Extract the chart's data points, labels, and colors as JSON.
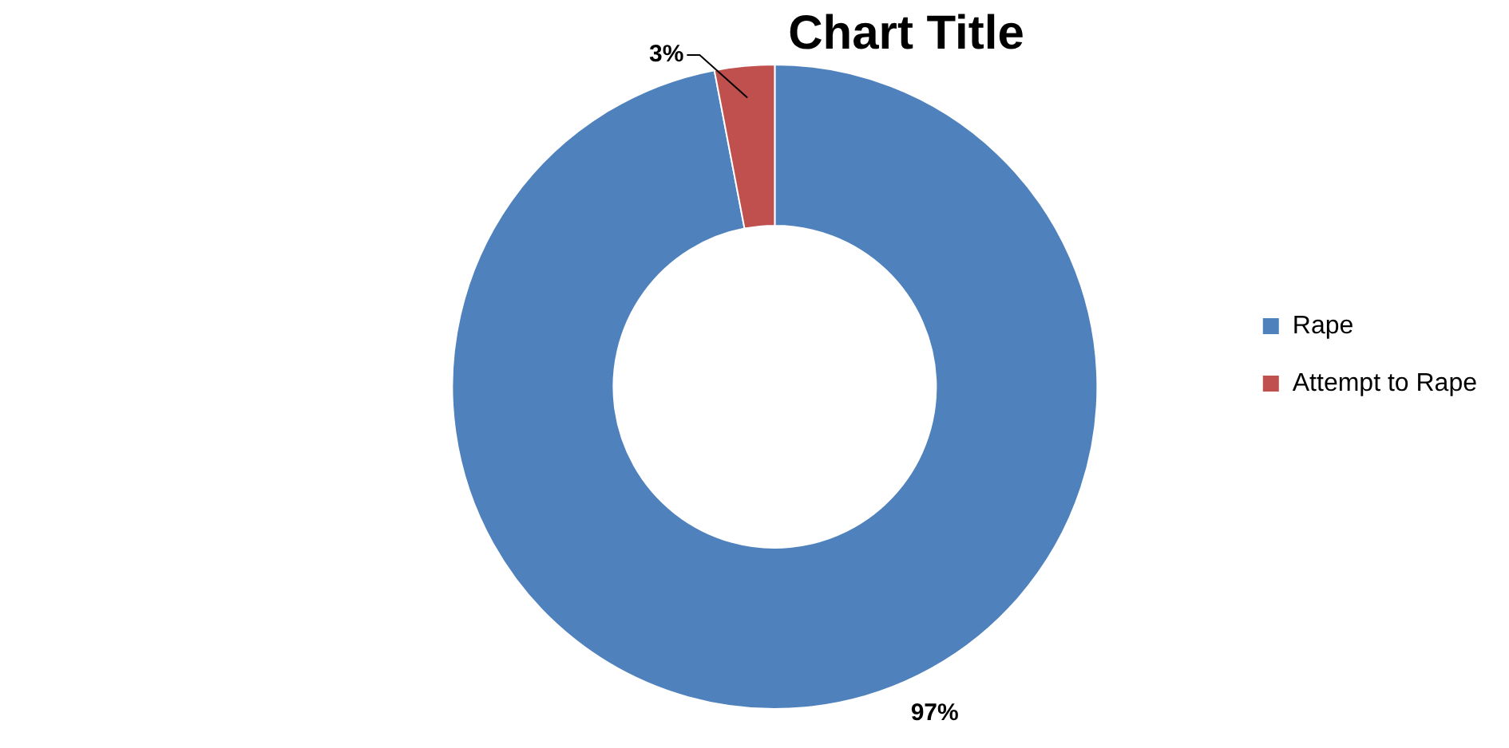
{
  "chart_data": {
    "type": "donut",
    "title": "Chart Title",
    "categories": [
      "Rape",
      "Attempt to Rape"
    ],
    "values": [
      97,
      3
    ],
    "colors": [
      "#4f81bd",
      "#c0504d"
    ],
    "value_labels": [
      "97%",
      "3%"
    ],
    "legend": "right"
  }
}
